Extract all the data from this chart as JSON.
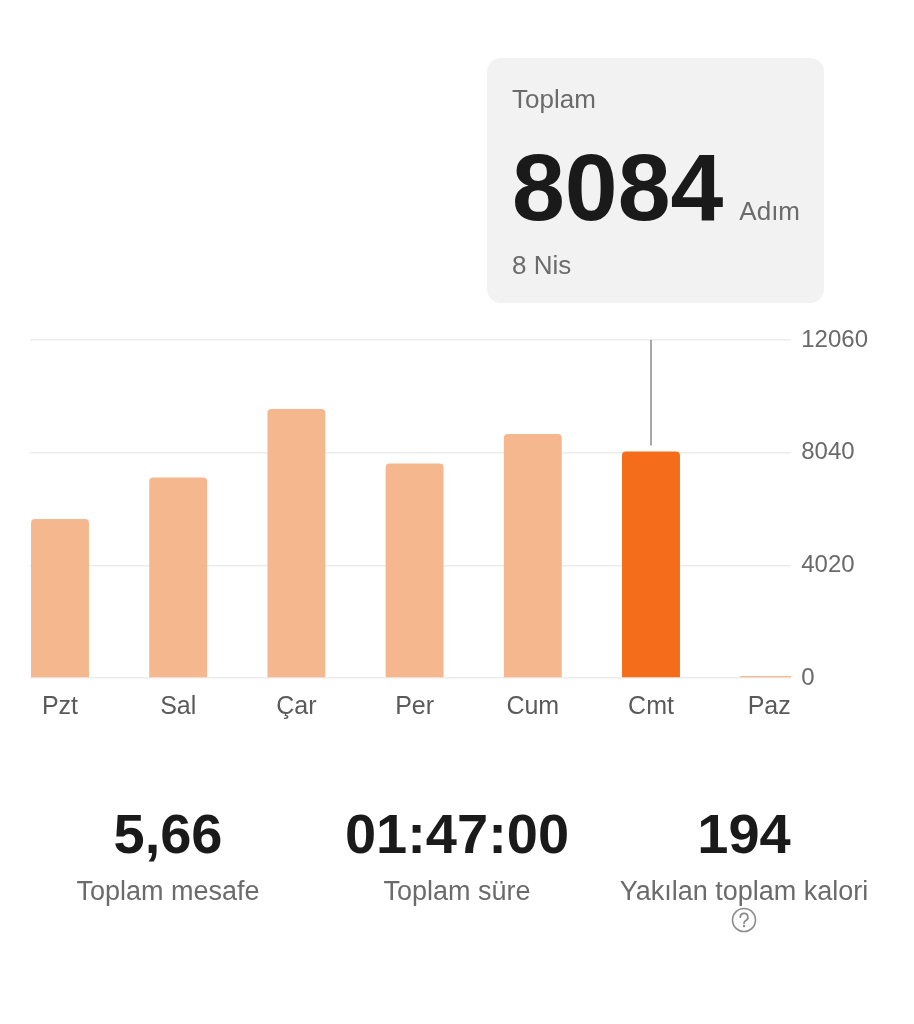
{
  "chart_data": [
    {
      "type": "bar",
      "categories": [
        "Pzt",
        "Sal",
        "Çar",
        "Per",
        "Cum",
        "Cmt",
        "Paz"
      ],
      "values": [
        5670,
        7150,
        9600,
        7650,
        8710,
        8084,
        0
      ],
      "colors": [
        "#f5b78e",
        "#f5b78e",
        "#f5b78e",
        "#f5b78e",
        "#f5b78e",
        "#f56c1a",
        "#f5b78e"
      ],
      "ylim": [
        0,
        12060
      ],
      "yticks": [
        0,
        4020,
        8040,
        12060
      ],
      "grid": "y",
      "annotations": [
        "Toplam",
        {
          "text": "8084",
          "x": "Cmt",
          "y": 8084
        },
        "Adım",
        "8 Nis"
      ]
    },
    {
      "type": "other",
      "annotations": [
        "5,66",
        "Toplam mesafe",
        "01:47:00",
        "Toplam süre",
        "194",
        "Yakılan toplam kalori"
      ]
    }
  ]
}
